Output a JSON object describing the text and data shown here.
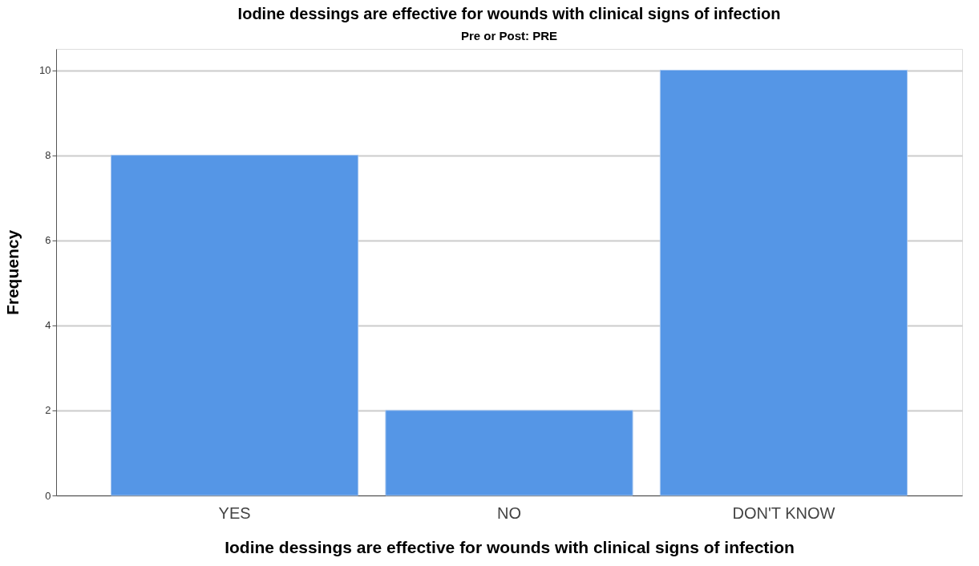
{
  "chart_data": {
    "type": "bar",
    "title": "Iodine dessings are effective for wounds with clinical signs of infection",
    "subtitle": "Pre or Post: PRE",
    "xlabel": "Iodine dessings are effective for wounds with clinical signs of infection",
    "ylabel": "Frequency",
    "categories": [
      "YES",
      "NO",
      "DON'T KNOW"
    ],
    "values": [
      8,
      2,
      10
    ],
    "color": "#5596e6",
    "ylim": [
      0,
      10.5
    ],
    "yticks": [
      0,
      2,
      4,
      6,
      8,
      10
    ],
    "grid": "y"
  }
}
